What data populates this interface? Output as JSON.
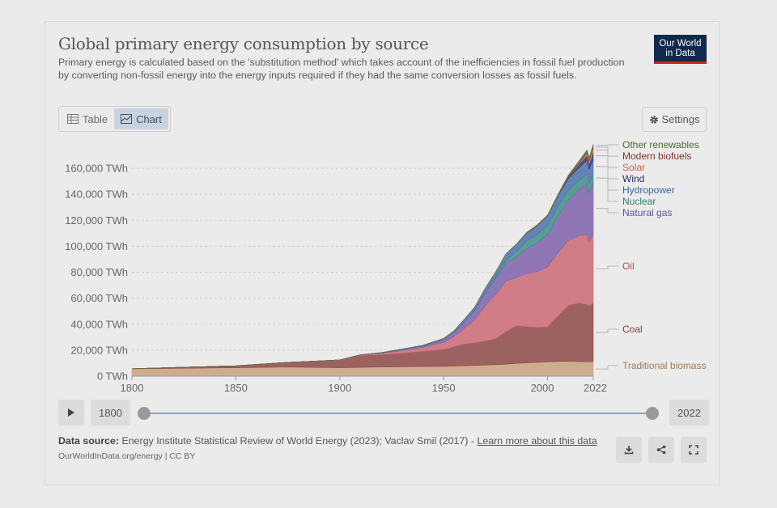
{
  "header": {
    "title": "Global primary energy consumption by source",
    "subtitle": "Primary energy is calculated based on the 'substitution method' which takes account of the inefficiencies in fossil fuel production by converting non-fossil energy into the energy inputs required if they had the same conversion losses as fossil fuels.",
    "logo_line1": "Our World",
    "logo_line2": "in Data"
  },
  "controls": {
    "tab_table": "Table",
    "tab_chart": "Chart",
    "active_tab": "Chart",
    "settings": "Settings"
  },
  "timeline": {
    "start_year": "1800",
    "end_year": "2022",
    "selected_start": 1800,
    "selected_end": 2022
  },
  "footer": {
    "source_label": "Data source:",
    "source_text": "Energy Institute Statistical Review of World Energy (2023); Vaclav Smil (2017) -",
    "learn_more": "Learn more about this data",
    "url": "OurWorldInData.org/energy | CC BY"
  },
  "colors": {
    "traditional_biomass": "#c9a27f",
    "coal": "#8e4a48",
    "oil": "#cc6a77",
    "natural_gas": "#7f63ad",
    "nuclear": "#3f8f8a",
    "hydropower": "#4d72ad",
    "wind": "#2c3b6a",
    "solar": "#d9756a",
    "modern_biofuels": "#8b3c37",
    "other_renewables": "#5d7a3e"
  },
  "chart_data": {
    "type": "area",
    "stacked": true,
    "x": [
      1800,
      1850,
      1875,
      1900,
      1910,
      1920,
      1930,
      1940,
      1950,
      1955,
      1960,
      1965,
      1970,
      1975,
      1980,
      1985,
      1990,
      1995,
      2000,
      2005,
      2010,
      2015,
      2019,
      2020,
      2022
    ],
    "xlim": [
      1800,
      2022
    ],
    "ylim": [
      0,
      170000
    ],
    "yticks": [
      0,
      20000,
      40000,
      60000,
      80000,
      100000,
      120000,
      140000,
      160000
    ],
    "ytick_labels": [
      "0 TWh",
      "20,000 TWh",
      "40,000 TWh",
      "60,000 TWh",
      "80,000 TWh",
      "100,000 TWh",
      "120,000 TWh",
      "140,000 TWh",
      "160,000 TWh"
    ],
    "xticks": [
      1800,
      1850,
      1900,
      1950,
      2000,
      2022
    ],
    "xtick_labels": [
      "1800",
      "1850",
      "1900",
      "1950",
      "2000",
      "2022"
    ],
    "grid": "horizontal-dashed",
    "legend": "right, labels at end of each series",
    "series": [
      {
        "name": "Traditional biomass",
        "values": [
          5600,
          6500,
          7000,
          6500,
          6800,
          7000,
          7200,
          7400,
          7500,
          7700,
          8000,
          8300,
          8500,
          8800,
          9200,
          9800,
          10200,
          10500,
          11000,
          11300,
          11500,
          11200,
          11100,
          11100,
          11100
        ]
      },
      {
        "name": "Coal",
        "values": [
          100,
          1500,
          3500,
          5700,
          9000,
          9600,
          10500,
          11700,
          13000,
          15000,
          16800,
          17300,
          18600,
          20000,
          25000,
          29000,
          28000,
          27000,
          27000,
          35000,
          43000,
          45000,
          44000,
          43000,
          45000
        ]
      },
      {
        "name": "Oil",
        "values": [
          0,
          0,
          100,
          200,
          500,
          1000,
          2000,
          3000,
          5500,
          8000,
          12000,
          18000,
          27000,
          34000,
          39000,
          37000,
          41000,
          43000,
          46000,
          49000,
          50000,
          52000,
          54000,
          49000,
          53000
        ]
      },
      {
        "name": "Natural gas",
        "values": [
          0,
          0,
          0,
          65,
          200,
          400,
          700,
          900,
          2100,
          2800,
          5000,
          7000,
          10000,
          12000,
          14000,
          16000,
          19000,
          22000,
          25000,
          28000,
          31000,
          35000,
          39000,
          38000,
          40000
        ]
      },
      {
        "name": "Nuclear",
        "values": [
          0,
          0,
          0,
          0,
          0,
          0,
          0,
          0,
          0,
          0,
          10,
          50,
          200,
          1200,
          2000,
          4000,
          6000,
          6500,
          7000,
          7600,
          7600,
          7200,
          7600,
          7300,
          6700
        ]
      },
      {
        "name": "Hydropower",
        "values": [
          0,
          0,
          0,
          0,
          0,
          100,
          400,
          700,
          900,
          1300,
          1900,
          2500,
          3200,
          4000,
          4800,
          5500,
          6000,
          6800,
          7200,
          7700,
          9000,
          10000,
          10500,
          11000,
          11000
        ]
      },
      {
        "name": "Wind",
        "values": [
          0,
          0,
          0,
          0,
          0,
          0,
          0,
          0,
          0,
          0,
          0,
          0,
          0,
          0,
          0,
          0,
          10,
          20,
          80,
          270,
          900,
          2200,
          3700,
          4100,
          5500
        ]
      },
      {
        "name": "Solar",
        "values": [
          0,
          0,
          0,
          0,
          0,
          0,
          0,
          0,
          0,
          0,
          0,
          0,
          0,
          0,
          0,
          0,
          0,
          0,
          5,
          10,
          90,
          700,
          1800,
          2200,
          3400
        ]
      },
      {
        "name": "Modern biofuels",
        "values": [
          0,
          0,
          0,
          0,
          0,
          0,
          0,
          0,
          0,
          0,
          0,
          0,
          0,
          0,
          20,
          100,
          150,
          200,
          250,
          400,
          800,
          950,
          1100,
          1000,
          1200
        ]
      },
      {
        "name": "Other renewables",
        "values": [
          0,
          0,
          0,
          0,
          0,
          0,
          0,
          0,
          0,
          0,
          50,
          70,
          100,
          140,
          200,
          270,
          360,
          400,
          520,
          600,
          800,
          1100,
          1400,
          1450,
          1600
        ]
      }
    ]
  }
}
